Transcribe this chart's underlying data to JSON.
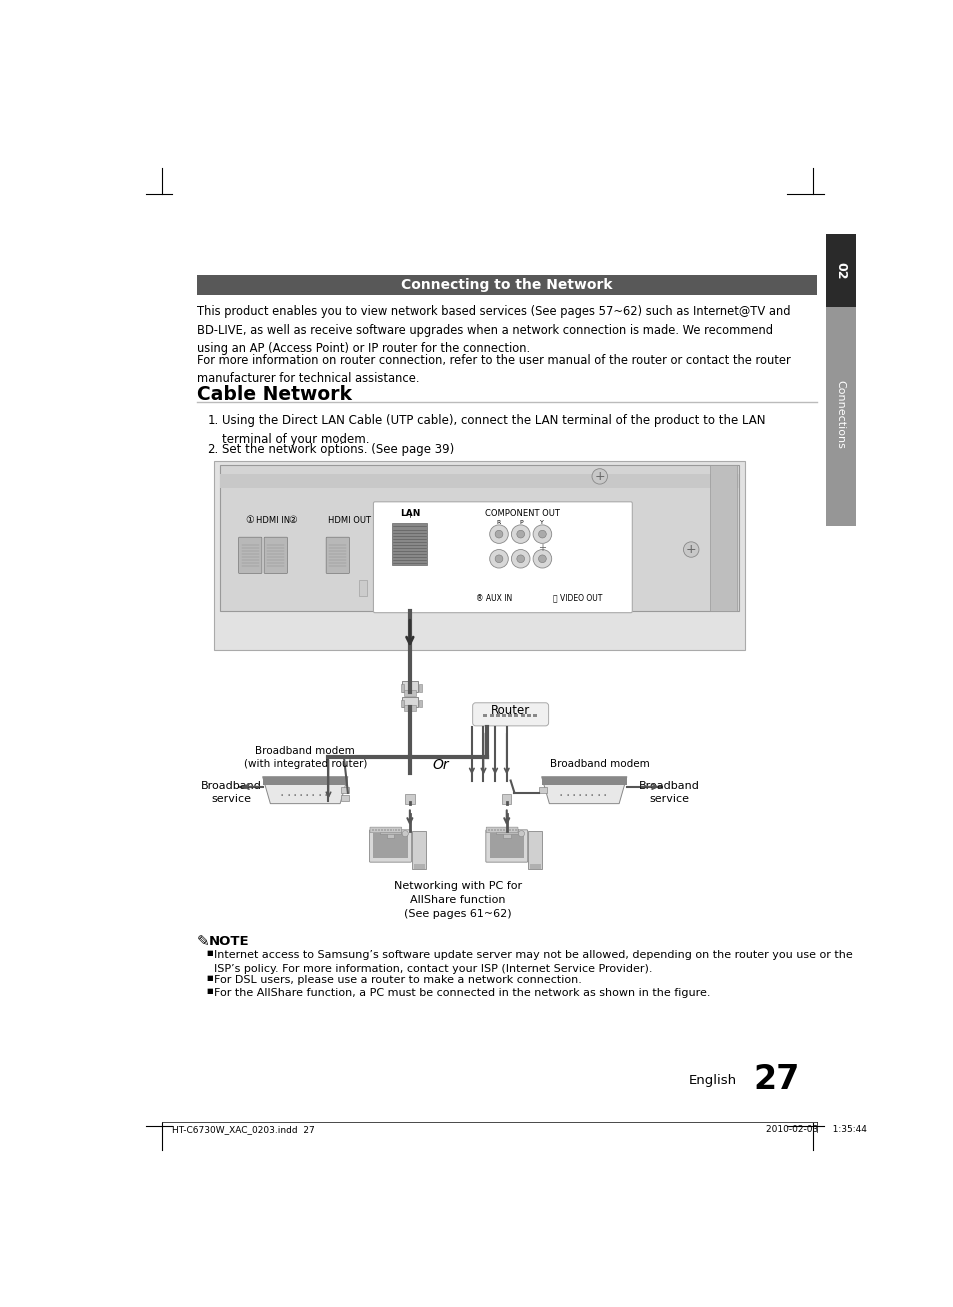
{
  "bg_color": "#ffffff",
  "header_bar_color": "#585858",
  "header_text": "Connecting to the Network",
  "header_text_color": "#ffffff",
  "section_title": "Cable Network",
  "body_text_1": "This product enables you to view network based services (See pages 57~62) such as Internet@TV and\nBD-LIVE, as well as receive software upgrades when a network connection is made. We recommend\nusing an AP (Access Point) or IP router for the connection.",
  "body_text_2": "For more information on router connection, refer to the user manual of the router or contact the router\nmanufacturer for technical assistance.",
  "step1": "Using the Direct LAN Cable (UTP cable), connect the LAN terminal of the product to the LAN\nterminal of your modem.",
  "step2": "Set the network options. (See page 39)",
  "note_title": "NOTE",
  "note_bullets": [
    "Internet access to Samsung’s software update server may not be allowed, depending on the router you use or the\nISP’s policy. For more information, contact your ISP (Internet Service Provider).",
    "For DSL users, please use a router to make a network connection.",
    "For the AllShare function, a PC must be connected in the network as shown in the figure."
  ],
  "footer_left": "HT-C6730W_XAC_0203.indd  27",
  "footer_right": "2010-02-03     1:35:44",
  "page_number": "27",
  "side_label": "Connections",
  "side_number": "02"
}
